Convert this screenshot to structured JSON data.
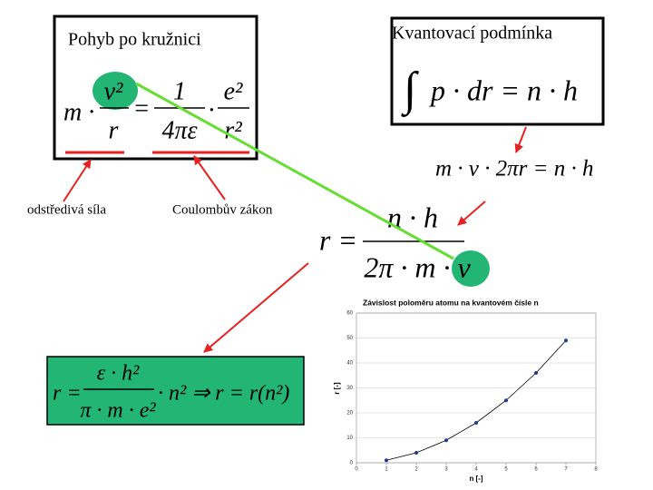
{
  "left_box": {
    "title": "Pohyb po kružnici",
    "formula": [
      "m ·",
      "v²",
      "r",
      "=",
      "1",
      "4πε",
      "·",
      "e²",
      "r²"
    ]
  },
  "labels": [
    "odstředivá síla",
    "Coulombův zákon"
  ],
  "right_box": {
    "title": "Kvantovací podmínka",
    "formula": [
      "∫",
      "p · dr = n · h"
    ]
  },
  "formula_mvr": "m · v · 2πr = n · h",
  "formula_r": [
    "r =",
    "n · h",
    "2π · m · v"
  ],
  "result_box": {
    "formula": [
      "r =",
      "ε · h²",
      "π · m · e²",
      "· n² ⇒ r = r(n²)"
    ]
  },
  "chart_data": {
    "type": "line",
    "title": "Závislost poloměru atomu na kvantovém čísle n",
    "xlabel": "n [-]",
    "ylabel": "r [-]",
    "x": [
      1,
      2,
      3,
      4,
      5,
      6,
      7
    ],
    "series": [
      {
        "color": "#1f3a93",
        "values": [
          1,
          4,
          9,
          16,
          25,
          36,
          49
        ]
      }
    ],
    "xlim": [
      0,
      8
    ],
    "ylim": [
      0,
      60
    ],
    "xticks": [
      0,
      1,
      2,
      3,
      4,
      5,
      6,
      7,
      8
    ],
    "yticks": [
      0,
      10,
      20,
      30,
      40,
      50,
      60
    ],
    "grid": true
  }
}
